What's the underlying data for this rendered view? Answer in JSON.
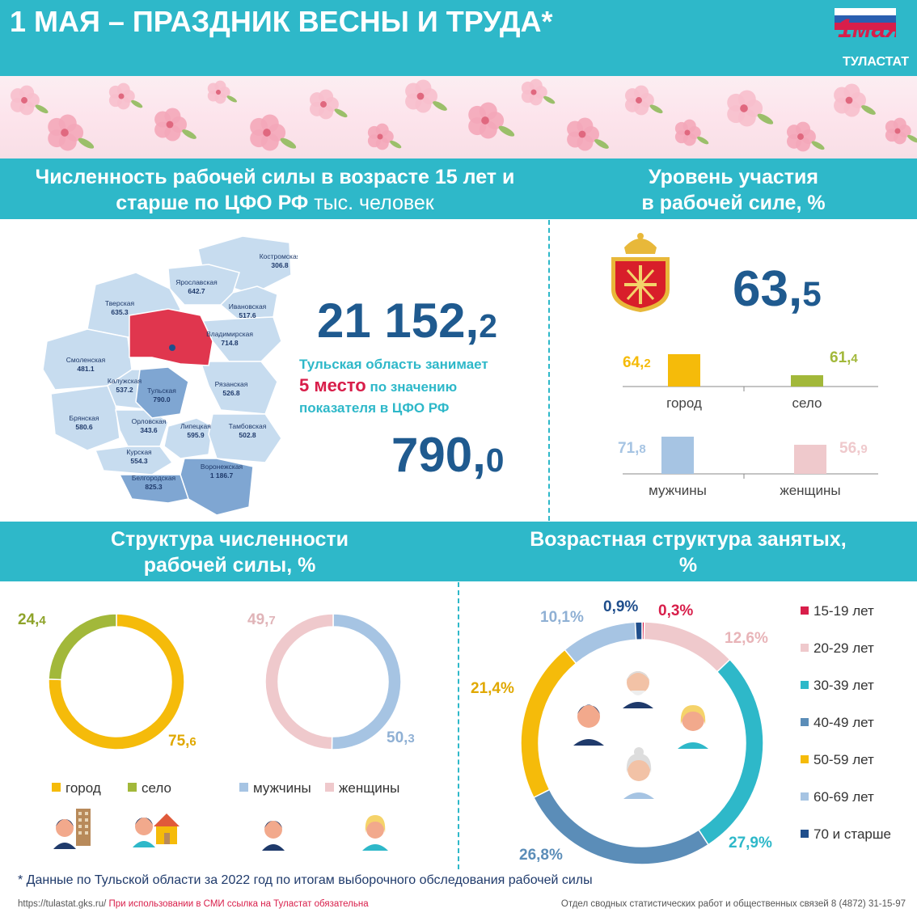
{
  "header": {
    "title": "1 МАЯ – ПРАЗДНИК ВЕСНЫ И ТРУДА*",
    "logo_text": "1мая",
    "brand": "ТУЛАСТАТ"
  },
  "section1": {
    "heading_line1": "Численность рабочей силы в возрасте 15 лет и",
    "heading_line2_bold": "старше по ЦФО РФ",
    "heading_line2_light": " тыс. человек",
    "total_int": "21 152,",
    "total_dec": "2",
    "note_line1": "Тульская область  занимает",
    "note_rank": "5 место",
    "note_line2_rest": " по значению",
    "note_line3": "показателя в ЦФО РФ",
    "tula_int": "790,",
    "tula_dec": "0"
  },
  "regions": [
    {
      "name": "Костромская",
      "value": "306.8"
    },
    {
      "name": "Ярославская",
      "value": "642.7"
    },
    {
      "name": "Ивановская",
      "value": "517.6"
    },
    {
      "name": "Тверская",
      "value": "635.3"
    },
    {
      "name": "Владимирская",
      "value": "714.8"
    },
    {
      "name": "Смоленская",
      "value": "481.1"
    },
    {
      "name": "Калужская",
      "value": "537.2"
    },
    {
      "name": "Рязанская",
      "value": "526.8"
    },
    {
      "name": "Тульская",
      "value": "790.0"
    },
    {
      "name": "Брянская",
      "value": "580.6"
    },
    {
      "name": "Орловская",
      "value": "343.6"
    },
    {
      "name": "Липецкая",
      "value": "595.9"
    },
    {
      "name": "Тамбовская",
      "value": "502.8"
    },
    {
      "name": "Курская",
      "value": "554.3"
    },
    {
      "name": "Воронежская",
      "value": "1 186.7"
    },
    {
      "name": "Белгородская",
      "value": "825.3"
    }
  ],
  "section2": {
    "heading_line1": "Уровень участия",
    "heading_line2": "в рабочей силе, %",
    "total_int": "63,",
    "total_dec": "5"
  },
  "section3": {
    "heading_line1": "Структура численности",
    "heading_line2": "рабочей силы, %",
    "legend1": [
      "город",
      "село"
    ],
    "legend2": [
      "мужчины",
      "женщины"
    ]
  },
  "section4": {
    "heading_line1": "Возрастная структура занятых,",
    "heading_line2": "%"
  },
  "footer": {
    "note": "* Данные по Тульской области за 2022 год по итогам выборочного обследования рабочей силы",
    "url": "https://tulastat.gks.ru/",
    "warning": " При использовании  в СМИ ссылка на Туластат  обязательна",
    "contact": "Отдел сводных статистических  работ  и общественных  связей  8  (4872)  31-15-97"
  },
  "colors": {
    "teal": "#2eb8c9",
    "navy": "#1f5a8f",
    "red": "#d81e4a",
    "yellow": "#f5bb0a",
    "green": "#a2b83a",
    "blue": "#a6c4e3",
    "pink": "#efc9cc"
  },
  "chart_data": [
    {
      "type": "bar",
      "categories": [
        "город",
        "село"
      ],
      "values": [
        64.2,
        61.4
      ],
      "labels": [
        "64,2",
        "61,4"
      ],
      "colors": [
        "#f5bb0a",
        "#a2b83a"
      ]
    },
    {
      "type": "bar",
      "categories": [
        "мужчины",
        "женщины"
      ],
      "values": [
        71.8,
        56.9
      ],
      "labels": [
        "71,8",
        "56,9"
      ],
      "colors": [
        "#a6c4e3",
        "#efc9cc"
      ]
    },
    {
      "type": "pie",
      "categories": [
        "город",
        "село"
      ],
      "values": [
        75.6,
        24.4
      ],
      "labels": [
        "75,6",
        "24,4"
      ],
      "colors": [
        "#f5bb0a",
        "#a2b83a"
      ]
    },
    {
      "type": "pie",
      "categories": [
        "мужчины",
        "женщины"
      ],
      "values": [
        50.3,
        49.7
      ],
      "labels": [
        "50,3",
        "49,7"
      ],
      "colors": [
        "#a6c4e3",
        "#efc9cc"
      ]
    },
    {
      "type": "pie",
      "categories": [
        "15-19 лет",
        "20-29 лет",
        "30-39 лет",
        "40-49 лет",
        "50-59 лет",
        "60-69 лет",
        "70 и старше"
      ],
      "values": [
        0.3,
        12.6,
        27.9,
        26.8,
        21.4,
        10.1,
        0.9
      ],
      "labels": [
        "0,3%",
        "12,6%",
        "27,9%",
        "26,8%",
        "21,4%",
        "10,1%",
        "0,9%"
      ],
      "colors": [
        "#d81e4a",
        "#efc9cc",
        "#2eb8c9",
        "#5b8db8",
        "#f5bb0a",
        "#a6c4e3",
        "#1f4e8c"
      ],
      "legend": "right"
    }
  ]
}
